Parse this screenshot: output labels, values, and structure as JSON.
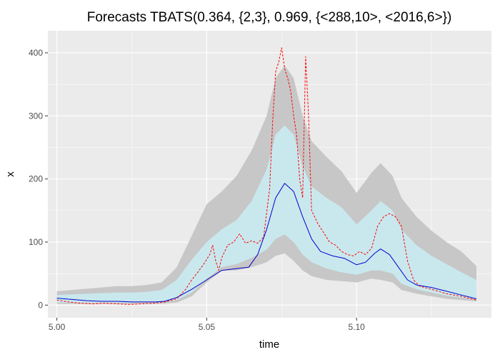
{
  "chart_data": {
    "type": "line",
    "title": "Forecasts TBATS(0.364, {2,3}, 0.969, {<288,10>, <2016,6>})",
    "xlabel": "time",
    "ylabel": "x",
    "xlim": [
      4.997,
      5.145
    ],
    "ylim": [
      -20,
      435
    ],
    "x_ticks": [
      5.0,
      5.05,
      5.1
    ],
    "x_tick_labels": [
      "5.00",
      "5.05",
      "5.10"
    ],
    "y_ticks": [
      0,
      100,
      200,
      300,
      400
    ],
    "y_tick_labels": [
      "0",
      "100",
      "200",
      "300",
      "400"
    ],
    "grid": true,
    "legend": "none",
    "colors": {
      "panel": "#ebebeb",
      "grid": "#ffffff",
      "band_95": "#c7c7c7",
      "band_80": "#c9e8ee",
      "forecast": "#0000cc",
      "actual": "#ff0000"
    },
    "series": [
      {
        "role": "band_95",
        "x": [
          5.0,
          5.005,
          5.01,
          5.015,
          5.02,
          5.025,
          5.03,
          5.035,
          5.04,
          5.045,
          5.05,
          5.055,
          5.06,
          5.065,
          5.07,
          5.073,
          5.076,
          5.079,
          5.082,
          5.085,
          5.09,
          5.095,
          5.1,
          5.105,
          5.108,
          5.112,
          5.115,
          5.12,
          5.125,
          5.13,
          5.135,
          5.14
        ],
        "lower": [
          2,
          2,
          2,
          2,
          2,
          2,
          2,
          2,
          4,
          14,
          36,
          55,
          55,
          60,
          68,
          78,
          82,
          70,
          55,
          46,
          40,
          38,
          36,
          42,
          40,
          36,
          24,
          18,
          14,
          10,
          8,
          6
        ],
        "upper": [
          22,
          24,
          26,
          28,
          30,
          30,
          32,
          36,
          60,
          110,
          160,
          180,
          205,
          245,
          300,
          360,
          380,
          360,
          300,
          260,
          235,
          212,
          178,
          210,
          225,
          205,
          170,
          140,
          118,
          100,
          85,
          62
        ]
      },
      {
        "role": "band_80",
        "x": [
          5.0,
          5.005,
          5.01,
          5.015,
          5.02,
          5.025,
          5.03,
          5.035,
          5.04,
          5.045,
          5.05,
          5.055,
          5.06,
          5.065,
          5.07,
          5.073,
          5.076,
          5.079,
          5.082,
          5.085,
          5.09,
          5.095,
          5.1,
          5.105,
          5.108,
          5.112,
          5.115,
          5.12,
          5.125,
          5.13,
          5.135,
          5.14
        ],
        "lower": [
          4,
          4,
          4,
          4,
          4,
          4,
          4,
          4,
          8,
          20,
          42,
          60,
          65,
          75,
          88,
          105,
          112,
          100,
          80,
          68,
          58,
          52,
          48,
          55,
          55,
          50,
          34,
          25,
          20,
          15,
          12,
          9
        ],
        "upper": [
          16,
          17,
          18,
          19,
          20,
          20,
          21,
          24,
          40,
          72,
          100,
          120,
          135,
          165,
          215,
          270,
          285,
          270,
          220,
          188,
          170,
          155,
          128,
          150,
          165,
          150,
          120,
          95,
          78,
          65,
          52,
          40
        ]
      },
      {
        "role": "forecast",
        "x": [
          5.0,
          5.005,
          5.01,
          5.015,
          5.02,
          5.025,
          5.03,
          5.033,
          5.036,
          5.04,
          5.045,
          5.05,
          5.055,
          5.06,
          5.064,
          5.067,
          5.07,
          5.073,
          5.076,
          5.079,
          5.082,
          5.085,
          5.088,
          5.092,
          5.096,
          5.1,
          5.103,
          5.106,
          5.108,
          5.111,
          5.114,
          5.117,
          5.12,
          5.125,
          5.13,
          5.135,
          5.14
        ],
        "y": [
          11,
          9,
          7,
          6,
          6,
          5,
          5,
          5,
          6,
          12,
          25,
          40,
          55,
          58,
          60,
          80,
          120,
          170,
          193,
          180,
          140,
          105,
          85,
          78,
          74,
          64,
          68,
          82,
          89,
          80,
          60,
          40,
          32,
          28,
          22,
          16,
          10
        ]
      },
      {
        "role": "actual",
        "x": [
          5.0,
          5.004,
          5.008,
          5.012,
          5.016,
          5.02,
          5.024,
          5.028,
          5.032,
          5.036,
          5.04,
          5.043,
          5.045,
          5.047,
          5.049,
          5.051,
          5.052,
          5.053,
          5.054,
          5.055,
          5.057,
          5.059,
          5.061,
          5.063,
          5.065,
          5.067,
          5.069,
          5.071,
          5.072,
          5.073,
          5.074,
          5.075,
          5.076,
          5.077,
          5.078,
          5.079,
          5.08,
          5.081,
          5.082,
          5.083,
          5.084,
          5.085,
          5.087,
          5.089,
          5.091,
          5.093,
          5.095,
          5.097,
          5.099,
          5.101,
          5.103,
          5.105,
          5.107,
          5.109,
          5.111,
          5.113,
          5.115,
          5.117,
          5.119,
          5.121,
          5.125,
          5.13,
          5.135,
          5.14
        ],
        "y": [
          8,
          5,
          3,
          2,
          3,
          2,
          1,
          2,
          3,
          5,
          10,
          25,
          40,
          52,
          65,
          80,
          95,
          70,
          55,
          75,
          95,
          100,
          113,
          98,
          102,
          98,
          108,
          185,
          290,
          370,
          385,
          408,
          375,
          360,
          340,
          300,
          270,
          200,
          170,
          394,
          300,
          150,
          130,
          115,
          100,
          95,
          85,
          80,
          78,
          85,
          80,
          90,
          125,
          140,
          145,
          140,
          125,
          70,
          40,
          30,
          25,
          18,
          14,
          8
        ]
      }
    ]
  }
}
